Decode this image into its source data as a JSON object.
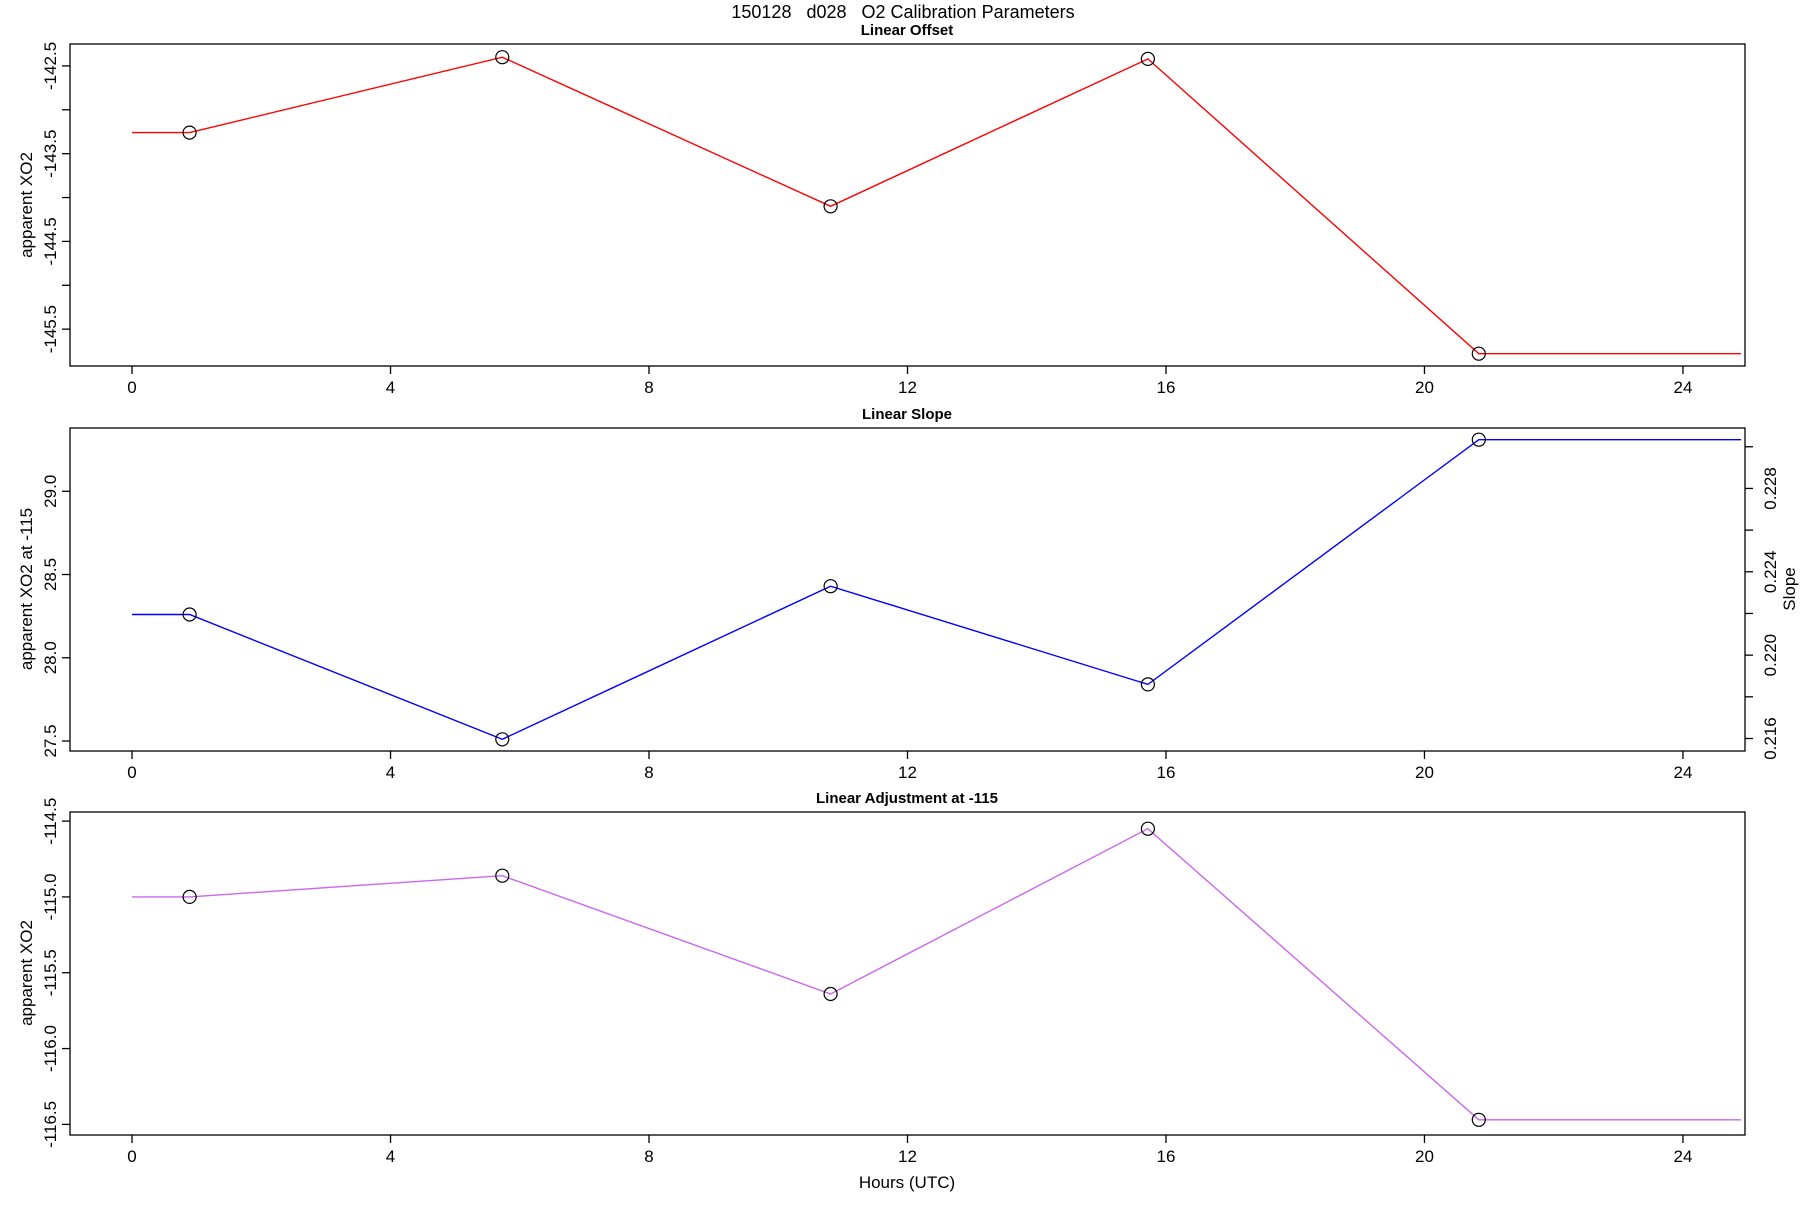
{
  "header": {
    "title": "150128   d028   O2 Calibration Parameters"
  },
  "chart_data": {
    "type": "line",
    "x_axis": {
      "label": "Hours (UTC)",
      "ticks": [
        0,
        4,
        8,
        12,
        16,
        20,
        24
      ],
      "xlim": [
        -0.96,
        24.96
      ],
      "line_start_x": 0,
      "line_end_x": 24.9
    },
    "x_hours": [
      0.89,
      5.73,
      10.81,
      15.72,
      20.84
    ],
    "marker": "open-circle",
    "panels": [
      {
        "title": "Linear Offset",
        "ylabel": "apparent XO2",
        "color": "#ff0000",
        "values": [
          -143.26,
          -142.4,
          -144.1,
          -142.42,
          -145.78
        ],
        "ylim": [
          -145.92,
          -142.25
        ],
        "yticks": [
          -142.5,
          -143.0,
          -143.5,
          -144.0,
          -144.5,
          -145.0,
          -145.5
        ],
        "ytick_labels": [
          "-142.5",
          "",
          "-143.5",
          "",
          "-144.5",
          "",
          "-145.5"
        ]
      },
      {
        "title": "Linear Slope",
        "ylabel": "apparent XO2 at -115",
        "color": "#0000ff",
        "values": [
          28.26,
          27.51,
          28.43,
          27.84,
          29.31
        ],
        "ylim": [
          27.44,
          29.38
        ],
        "yticks": [
          27.5,
          28.0,
          28.5,
          29.0
        ],
        "ytick_labels": [
          "27.5",
          "28.0",
          "28.5",
          "29.0"
        ],
        "right_axis": {
          "label": "Slope",
          "ylim": [
            0.2154,
            0.2309
          ],
          "ticks": [
            0.216,
            0.218,
            0.22,
            0.222,
            0.224,
            0.226,
            0.228,
            0.23
          ],
          "tick_labels": [
            "0.216",
            "",
            "0.220",
            "",
            "0.224",
            "",
            "0.228",
            ""
          ]
        }
      },
      {
        "title": "Linear Adjustment at -115",
        "ylabel": "apparent XO2",
        "color": "#cc66ee",
        "values": [
          -115.0,
          -114.86,
          -115.64,
          -114.55,
          -116.47
        ],
        "ylim": [
          -116.57,
          -114.44
        ],
        "yticks": [
          -114.5,
          -115.0,
          -115.5,
          -116.0,
          -116.5
        ],
        "ytick_labels": [
          "-114.5",
          "-115.0",
          "-115.5",
          "-116.0",
          "-116.5"
        ]
      }
    ]
  }
}
